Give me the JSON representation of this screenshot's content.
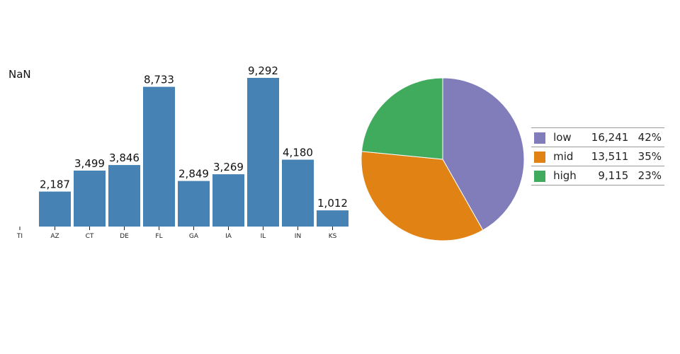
{
  "bar_axis_label": "NaN",
  "first_tick": "TI",
  "chart_data": [
    {
      "type": "bar",
      "categories": [
        "AZ",
        "CT",
        "DE",
        "FL",
        "GA",
        "IA",
        "IL",
        "IN",
        "KS"
      ],
      "values": [
        2187,
        3499,
        3846,
        8733,
        2849,
        3269,
        9292,
        4180,
        1012
      ],
      "value_labels": [
        "2,187",
        "3,499",
        "3,846",
        "8,733",
        "2,849",
        "3,269",
        "9,292",
        "4,180",
        "1,012"
      ],
      "color": "#4682b4",
      "ylim": [
        0,
        9292
      ]
    },
    {
      "type": "pie",
      "slices": [
        {
          "label": "low",
          "value": 16241,
          "value_label": "16,241",
          "percent": "42%",
          "color": "#807dba"
        },
        {
          "label": "mid",
          "value": 13511,
          "value_label": "13,511",
          "percent": "35%",
          "color": "#e08214"
        },
        {
          "label": "high",
          "value": 9115,
          "value_label": "9,115",
          "percent": "23%",
          "color": "#41ab5d"
        }
      ]
    }
  ]
}
